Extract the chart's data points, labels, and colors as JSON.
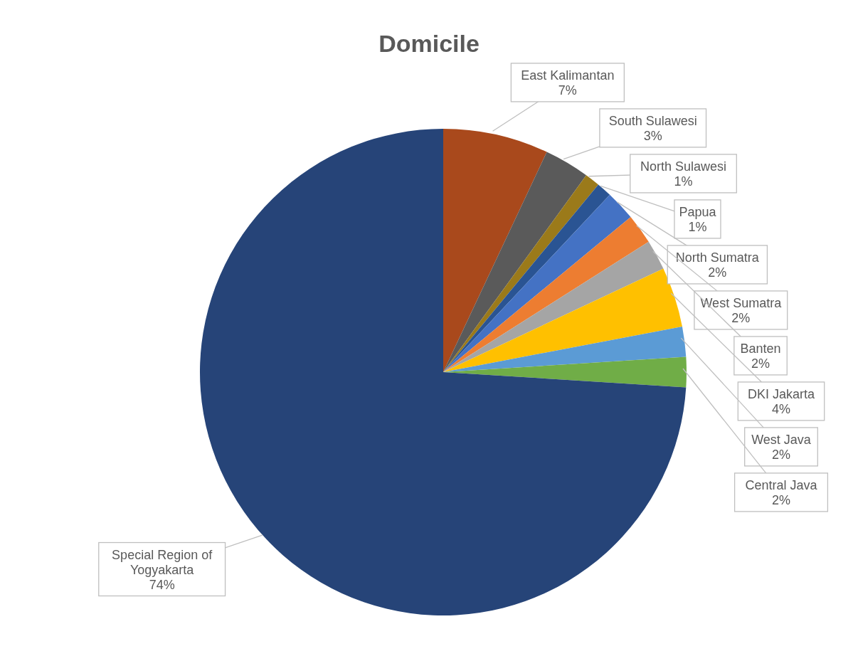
{
  "chart_data": {
    "type": "pie",
    "title": "Domicile",
    "categories": [
      "East Kalimantan",
      "South Sulawesi",
      "North Sulawesi",
      "Papua",
      "North Sumatra",
      "West Sumatra",
      "Banten",
      "DKI Jakarta",
      "West Java",
      "Central Java",
      "Special Region of Yogyakarta"
    ],
    "values": [
      7,
      3,
      1,
      1,
      2,
      2,
      2,
      4,
      2,
      2,
      74
    ],
    "value_labels": [
      "7%",
      "3%",
      "1%",
      "1%",
      "2%",
      "2%",
      "2%",
      "4%",
      "2%",
      "2%",
      "74%"
    ],
    "colors": [
      "#a9491c",
      "#5a5a5a",
      "#9b7a1a",
      "#2a5493",
      "#4472c4",
      "#ed7d31",
      "#a5a5a5",
      "#ffc000",
      "#5b9bd5",
      "#70ad47",
      "#264478"
    ],
    "legend": false
  }
}
